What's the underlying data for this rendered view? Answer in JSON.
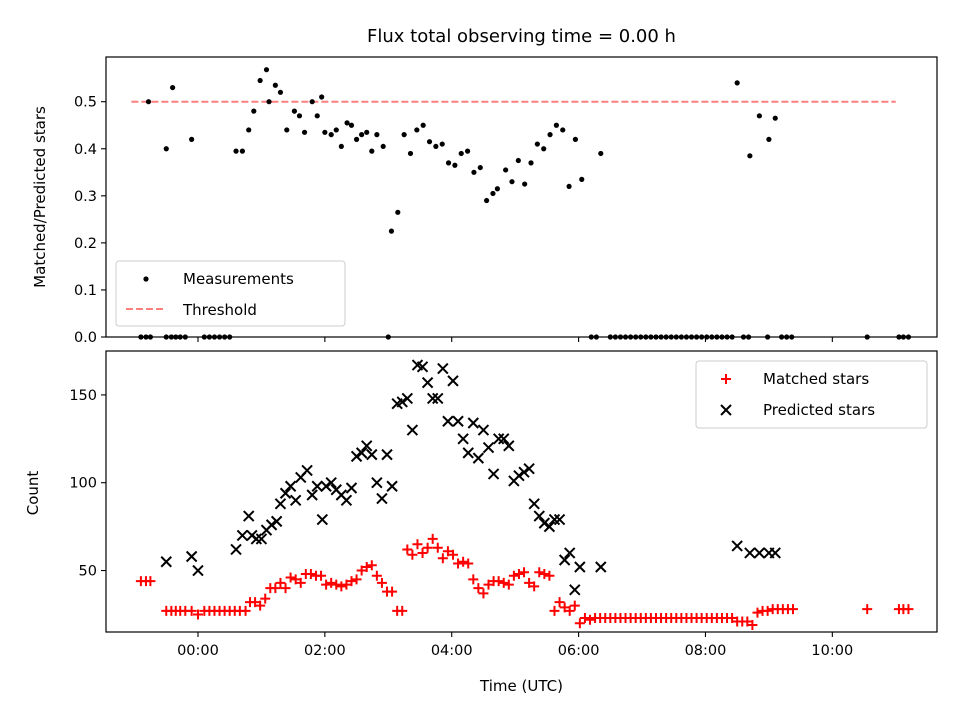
{
  "chart_data": [
    {
      "type": "scatter",
      "title": "Flux total observing time = 0.00 h",
      "ylabel": "Matched/Predicted stars",
      "ylim": [
        0,
        0.595
      ],
      "xlim": [
        -1.45,
        11.65
      ],
      "x_unit": "hours since 00:00 UTC",
      "yticks": [
        0.0,
        0.1,
        0.2,
        0.3,
        0.4,
        0.5
      ],
      "ytick_labels": [
        "0.0",
        "0.1",
        "0.2",
        "0.3",
        "0.4",
        "0.5"
      ],
      "grid": false,
      "legend": {
        "placement": "lower-left",
        "entries": [
          "Measurements",
          "Threshold"
        ]
      },
      "threshold": {
        "name": "Threshold",
        "value": 0.5,
        "x_range": [
          -1.05,
          11.0
        ],
        "color": "#ff7f7f",
        "style": "dashed"
      },
      "series": [
        {
          "name": "Measurements",
          "color": "#000000",
          "marker": "dot",
          "x": [
            -0.78,
            -0.5,
            -0.4,
            -0.1,
            0.6,
            0.7,
            0.8,
            0.88,
            0.98,
            1.08,
            1.12,
            1.22,
            1.3,
            1.4,
            1.52,
            1.6,
            1.68,
            1.8,
            1.88,
            1.95,
            2.0,
            2.1,
            2.18,
            2.26,
            2.35,
            2.42,
            2.5,
            2.58,
            2.66,
            2.74,
            2.82,
            2.92,
            3.05,
            3.15,
            3.25,
            3.35,
            3.45,
            3.55,
            3.65,
            3.75,
            3.85,
            3.95,
            4.05,
            4.15,
            4.25,
            4.35,
            4.45,
            4.55,
            4.65,
            4.72,
            4.85,
            4.95,
            5.05,
            5.15,
            5.25,
            5.35,
            5.45,
            5.55,
            5.65,
            5.75,
            5.85,
            5.95,
            6.05,
            6.35,
            8.5,
            8.7,
            8.85,
            9.0,
            9.1
          ],
          "y": [
            0.5,
            0.4,
            0.53,
            0.42,
            0.395,
            0.395,
            0.44,
            0.48,
            0.545,
            0.568,
            0.5,
            0.535,
            0.52,
            0.44,
            0.48,
            0.47,
            0.435,
            0.5,
            0.47,
            0.51,
            0.435,
            0.43,
            0.44,
            0.405,
            0.455,
            0.45,
            0.42,
            0.43,
            0.435,
            0.395,
            0.43,
            0.405,
            0.225,
            0.265,
            0.43,
            0.39,
            0.44,
            0.45,
            0.415,
            0.405,
            0.41,
            0.37,
            0.365,
            0.39,
            0.395,
            0.35,
            0.36,
            0.29,
            0.305,
            0.315,
            0.355,
            0.33,
            0.375,
            0.325,
            0.37,
            0.41,
            0.4,
            0.43,
            0.45,
            0.44,
            0.32,
            0.42,
            0.335,
            0.39,
            0.54,
            0.385,
            0.47,
            0.42,
            0.465
          ]
        },
        {
          "name": "",
          "color": "#000000",
          "marker": "dot",
          "x": [
            -0.9,
            -0.82,
            -0.75,
            -0.5,
            -0.42,
            -0.35,
            -0.28,
            -0.2,
            0.1,
            0.18,
            0.26,
            0.34,
            0.42,
            0.5,
            3.0,
            6.2,
            6.28,
            6.5,
            6.58,
            6.66,
            6.74,
            6.82,
            6.9,
            6.98,
            7.06,
            7.14,
            7.22,
            7.3,
            7.38,
            7.46,
            7.54,
            7.62,
            7.7,
            7.78,
            7.86,
            7.94,
            8.02,
            8.1,
            8.18,
            8.26,
            8.34,
            8.42,
            8.6,
            8.68,
            8.98,
            9.2,
            9.28,
            9.36,
            10.55,
            11.05,
            11.12,
            11.2
          ],
          "y": [
            0,
            0,
            0,
            0,
            0,
            0,
            0,
            0,
            0,
            0,
            0,
            0,
            0,
            0,
            0,
            0,
            0,
            0,
            0,
            0,
            0,
            0,
            0,
            0,
            0,
            0,
            0,
            0,
            0,
            0,
            0,
            0,
            0,
            0,
            0,
            0,
            0,
            0,
            0,
            0,
            0,
            0,
            0,
            0,
            0,
            0,
            0,
            0,
            0,
            0,
            0,
            0
          ]
        }
      ]
    },
    {
      "type": "scatter",
      "xlabel": "Time (UTC)",
      "ylabel": "Count",
      "ylim": [
        15,
        175
      ],
      "xlim": [
        -1.45,
        11.65
      ],
      "x_unit": "hours since 00:00 UTC",
      "yticks": [
        50,
        100,
        150
      ],
      "ytick_labels": [
        "50",
        "100",
        "150"
      ],
      "xticks": [
        0,
        2,
        4,
        6,
        8,
        10
      ],
      "xtick_labels": [
        "00:00",
        "02:00",
        "04:00",
        "06:00",
        "08:00",
        "10:00"
      ],
      "grid": false,
      "legend": {
        "placement": "top-right",
        "entries": [
          "Matched stars",
          "Predicted stars"
        ]
      },
      "series": [
        {
          "name": "Matched stars",
          "color": "#ff0000",
          "marker": "plus",
          "x": [
            -0.9,
            -0.82,
            -0.75,
            -0.5,
            -0.42,
            -0.35,
            -0.28,
            -0.2,
            -0.1,
            0.0,
            0.1,
            0.18,
            0.26,
            0.34,
            0.42,
            0.5,
            0.58,
            0.66,
            0.75,
            0.82,
            0.9,
            0.98,
            1.06,
            1.14,
            1.22,
            1.3,
            1.38,
            1.46,
            1.54,
            1.62,
            1.7,
            1.78,
            1.86,
            1.94,
            2.02,
            2.1,
            2.18,
            2.26,
            2.34,
            2.42,
            2.5,
            2.58,
            2.66,
            2.74,
            2.82,
            2.9,
            2.98,
            3.06,
            3.14,
            3.22,
            3.3,
            3.38,
            3.46,
            3.54,
            3.62,
            3.7,
            3.78,
            3.86,
            3.94,
            4.02,
            4.1,
            4.18,
            4.26,
            4.34,
            4.42,
            4.5,
            4.58,
            4.66,
            4.74,
            4.82,
            4.9,
            4.98,
            5.06,
            5.14,
            5.22,
            5.3,
            5.38,
            5.46,
            5.54,
            5.62,
            5.7,
            5.78,
            5.86,
            5.94,
            6.02,
            6.1,
            6.18,
            6.26,
            6.34,
            6.42,
            6.5,
            6.58,
            6.66,
            6.74,
            6.82,
            6.9,
            6.98,
            7.06,
            7.14,
            7.22,
            7.3,
            7.38,
            7.46,
            7.54,
            7.62,
            7.7,
            7.78,
            7.86,
            7.94,
            8.02,
            8.1,
            8.18,
            8.26,
            8.34,
            8.42,
            8.5,
            8.58,
            8.66,
            8.74,
            8.82,
            8.9,
            8.98,
            9.06,
            9.14,
            9.22,
            9.3,
            9.38,
            10.55,
            11.05,
            11.12,
            11.2
          ],
          "y": [
            44,
            44,
            44,
            27,
            27,
            27,
            27,
            27,
            27,
            25,
            27,
            27,
            27,
            27,
            27,
            27,
            27,
            27,
            27,
            32,
            32,
            30,
            34,
            40,
            40,
            43,
            40,
            46,
            45,
            43,
            48,
            48,
            47,
            47,
            42,
            43,
            42,
            41,
            42,
            44,
            45,
            50,
            52,
            53,
            47,
            43,
            38,
            38,
            27,
            27,
            62,
            59,
            65,
            60,
            63,
            68,
            63,
            57,
            61,
            59,
            54,
            55,
            54,
            45,
            40,
            37,
            42,
            44,
            44,
            43,
            42,
            47,
            48,
            49,
            43,
            41,
            49,
            48,
            47,
            27,
            32,
            29,
            27,
            30,
            20,
            23,
            22,
            23,
            23,
            23,
            23,
            23,
            23,
            23,
            23,
            23,
            23,
            23,
            23,
            23,
            23,
            23,
            23,
            23,
            23,
            23,
            23,
            23,
            23,
            23,
            23,
            23,
            23,
            23,
            23,
            21,
            21,
            21,
            19,
            26,
            27,
            27,
            28,
            28,
            28,
            28,
            28,
            28,
            28,
            28,
            28
          ]
        },
        {
          "name": "Predicted stars",
          "color": "#000000",
          "marker": "x",
          "x": [
            -0.5,
            -0.1,
            0.0,
            0.6,
            0.7,
            0.8,
            0.85,
            0.92,
            1.0,
            1.08,
            1.16,
            1.24,
            1.3,
            1.38,
            1.46,
            1.54,
            1.62,
            1.72,
            1.8,
            1.88,
            1.96,
            2.02,
            2.1,
            2.18,
            2.26,
            2.34,
            2.42,
            2.5,
            2.58,
            2.66,
            2.74,
            2.82,
            2.9,
            2.98,
            3.06,
            3.14,
            3.22,
            3.3,
            3.38,
            3.46,
            3.54,
            3.62,
            3.7,
            3.78,
            3.86,
            3.94,
            4.02,
            4.1,
            4.18,
            4.26,
            4.34,
            4.42,
            4.5,
            4.58,
            4.66,
            4.74,
            4.82,
            4.9,
            4.98,
            5.06,
            5.14,
            5.22,
            5.3,
            5.38,
            5.46,
            5.54,
            5.62,
            5.7,
            5.78,
            5.86,
            5.94,
            6.02,
            6.35,
            8.5,
            8.7,
            8.85,
            9.0,
            9.1
          ],
          "y": [
            55,
            58,
            50,
            62,
            70,
            81,
            70,
            68,
            68,
            73,
            76,
            78,
            88,
            94,
            98,
            90,
            103,
            107,
            93,
            98,
            79,
            98,
            100,
            96,
            93,
            90,
            97,
            115,
            117,
            121,
            116,
            100,
            91,
            116,
            98,
            145,
            146,
            148,
            130,
            167,
            166,
            157,
            148,
            148,
            165,
            135,
            158,
            135,
            125,
            117,
            134,
            114,
            130,
            120,
            105,
            125,
            125,
            121,
            101,
            104,
            106,
            108,
            88,
            81,
            77,
            75,
            79,
            79,
            56,
            60,
            39,
            52,
            52,
            64,
            60,
            60,
            60,
            60
          ]
        }
      ]
    }
  ]
}
